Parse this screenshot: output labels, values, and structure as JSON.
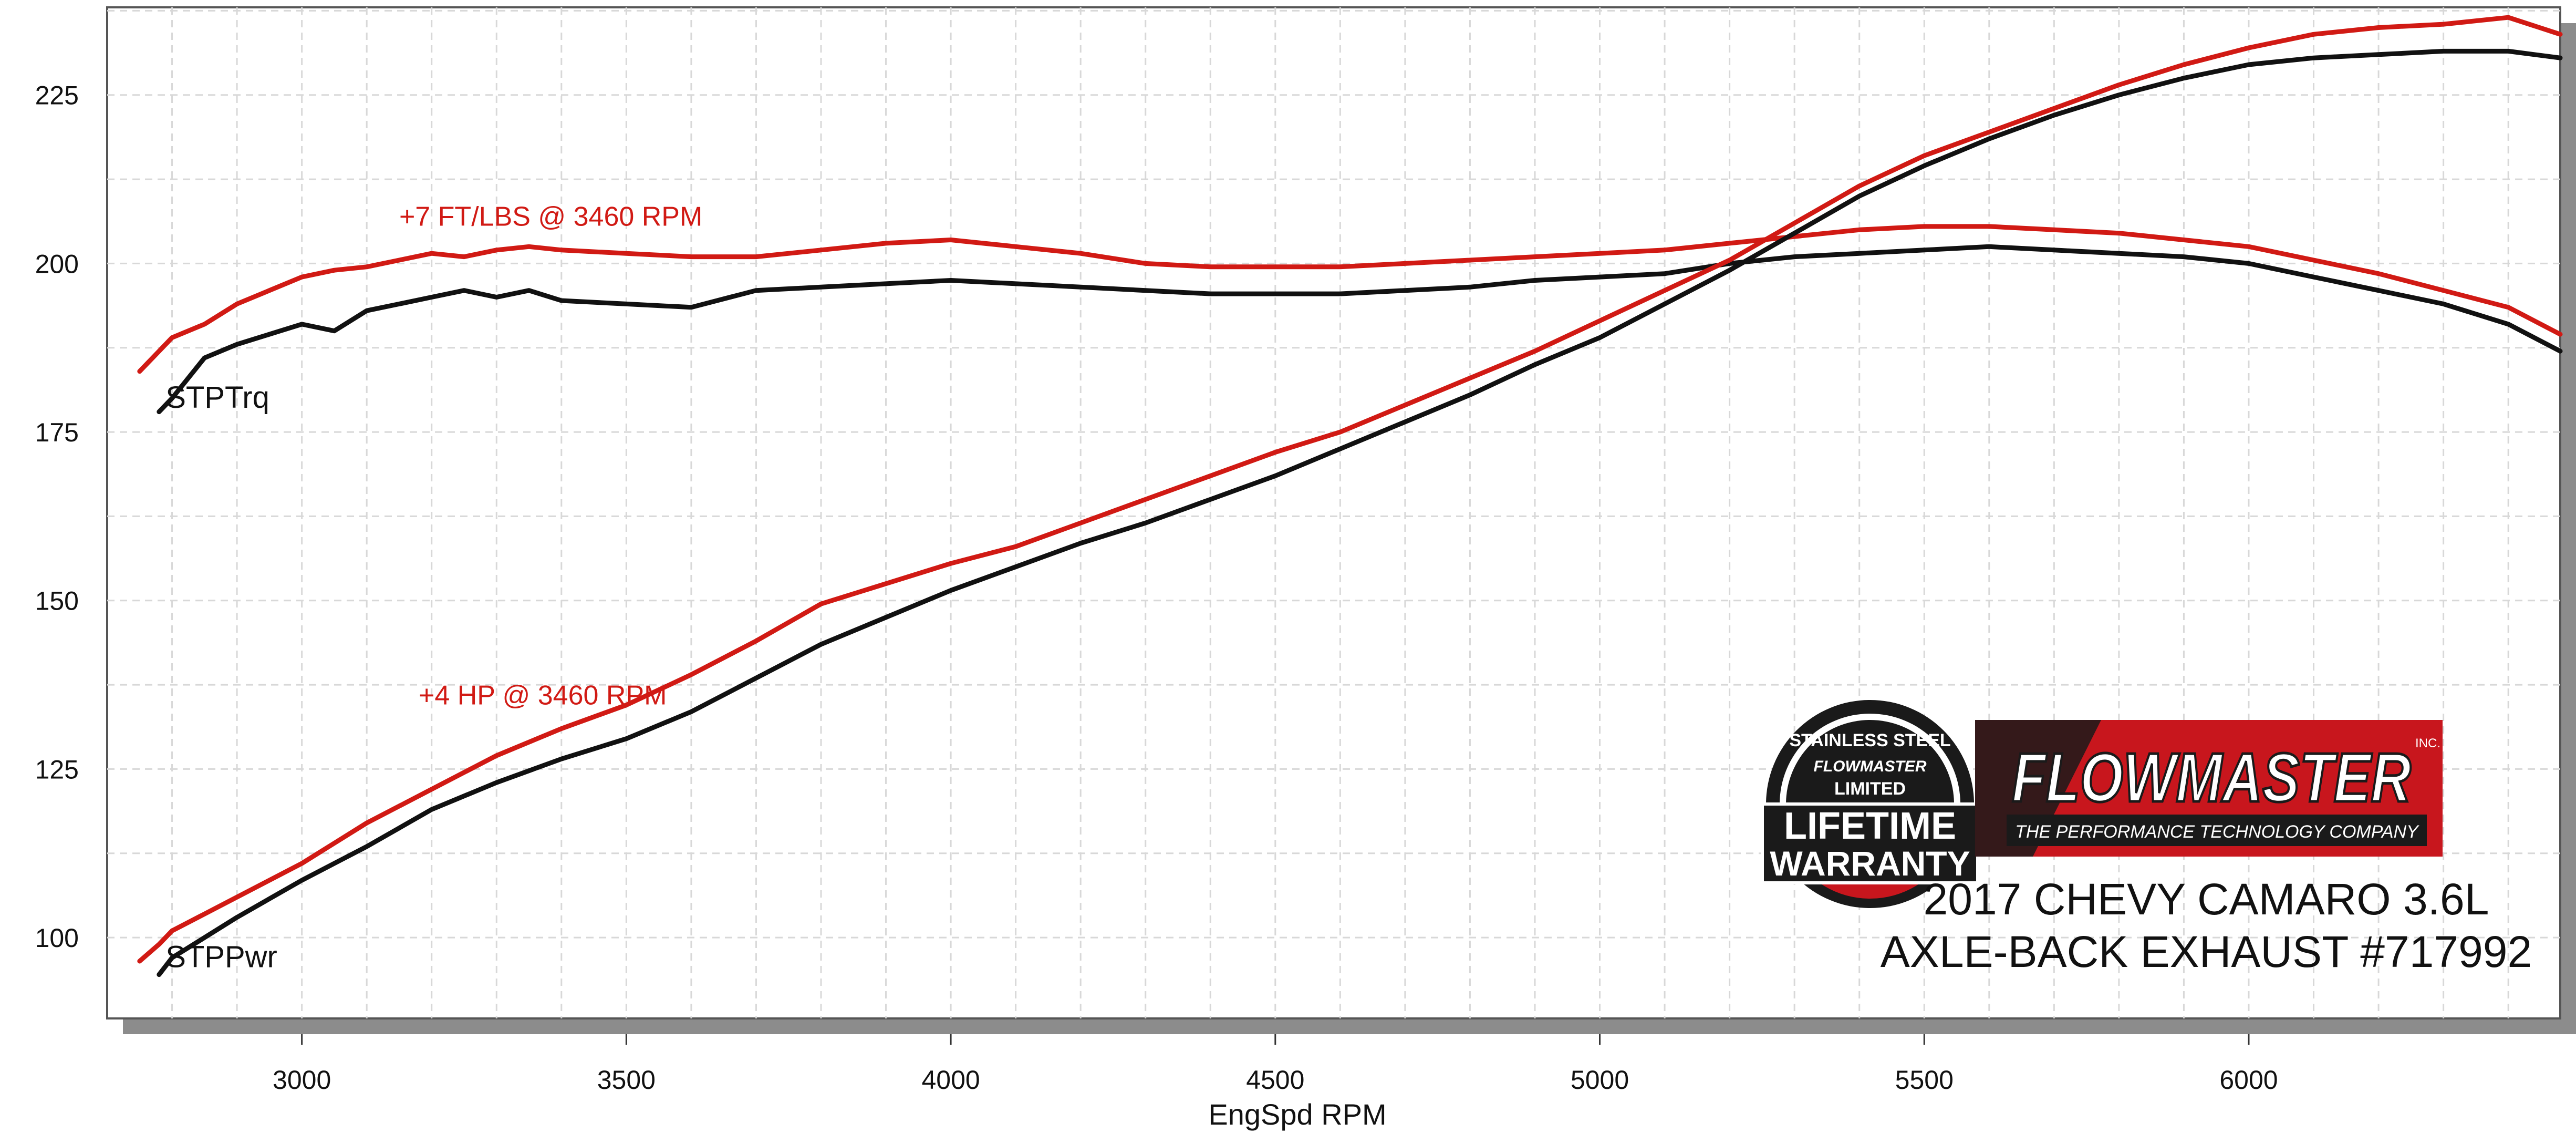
{
  "chart_data": {
    "type": "line",
    "xlabel": "EngSpd  RPM",
    "ylabel": "",
    "xlim": [
      2700,
      6480
    ],
    "ylim": [
      88,
      238
    ],
    "x_ticks": [
      3000,
      3500,
      4000,
      4500,
      5000,
      5500,
      6000
    ],
    "y_ticks": [
      100,
      125,
      150,
      175,
      200,
      225
    ],
    "grid": true,
    "series": [
      {
        "name": "STPTrq",
        "color": "#111111",
        "x": [
          2780,
          2800,
          2850,
          2900,
          3000,
          3050,
          3100,
          3150,
          3200,
          3250,
          3300,
          3350,
          3400,
          3500,
          3600,
          3700,
          3800,
          3900,
          4000,
          4100,
          4200,
          4300,
          4400,
          4500,
          4600,
          4700,
          4800,
          4900,
          5000,
          5100,
          5200,
          5300,
          5400,
          5500,
          5600,
          5700,
          5800,
          5900,
          6000,
          6100,
          6200,
          6300,
          6400,
          6480
        ],
        "y": [
          178,
          180,
          186,
          188,
          191,
          190,
          193,
          194,
          195,
          196,
          195,
          196,
          194.5,
          194,
          193.5,
          196,
          196.5,
          197,
          197.5,
          197,
          196.5,
          196,
          195.5,
          195.5,
          195.5,
          196,
          196.5,
          197.5,
          198,
          198.5,
          200,
          201,
          201.5,
          202,
          202.5,
          202,
          201.5,
          201,
          200,
          198,
          196,
          194,
          191,
          187
        ]
      },
      {
        "name": "",
        "color": "#d11a14",
        "x": [
          2750,
          2780,
          2800,
          2850,
          2900,
          2950,
          3000,
          3050,
          3100,
          3150,
          3200,
          3250,
          3300,
          3350,
          3400,
          3500,
          3600,
          3700,
          3800,
          3900,
          4000,
          4100,
          4200,
          4300,
          4400,
          4500,
          4600,
          4700,
          4800,
          4900,
          5000,
          5100,
          5200,
          5300,
          5400,
          5500,
          5600,
          5700,
          5800,
          5900,
          6000,
          6100,
          6200,
          6300,
          6400,
          6480
        ],
        "y": [
          184,
          187,
          189,
          191,
          194,
          196,
          198,
          199,
          199.5,
          200.5,
          201.5,
          201,
          202,
          202.5,
          202,
          201.5,
          201,
          201,
          202,
          203,
          203.5,
          202.5,
          201.5,
          200,
          199.5,
          199.5,
          199.5,
          200,
          200.5,
          201,
          201.5,
          202,
          203,
          204,
          205,
          205.5,
          205.5,
          205,
          204.5,
          203.5,
          202.5,
          200.5,
          198.5,
          196,
          193.5,
          189.5
        ]
      },
      {
        "name": "STPPwr",
        "color": "#111111",
        "x": [
          2780,
          2800,
          2900,
          3000,
          3100,
          3200,
          3300,
          3400,
          3500,
          3600,
          3700,
          3800,
          3900,
          4000,
          4100,
          4200,
          4300,
          4400,
          4500,
          4600,
          4700,
          4800,
          4900,
          5000,
          5100,
          5200,
          5300,
          5400,
          5500,
          5600,
          5700,
          5800,
          5900,
          6000,
          6100,
          6200,
          6300,
          6400,
          6480
        ],
        "y": [
          94.5,
          97,
          103,
          108.5,
          113.5,
          119,
          123,
          126.5,
          129.5,
          133.5,
          138.5,
          143.5,
          147.5,
          151.5,
          155,
          158.5,
          161.5,
          165,
          168.5,
          172.5,
          176.5,
          180.5,
          185,
          189,
          194,
          199,
          204.5,
          210,
          214.5,
          218.5,
          222,
          225,
          227.5,
          229.5,
          230.5,
          231,
          231.5,
          231.5,
          230.5
        ]
      },
      {
        "name": "",
        "color": "#d11a14",
        "x": [
          2750,
          2780,
          2800,
          2900,
          3000,
          3100,
          3200,
          3300,
          3400,
          3500,
          3600,
          3700,
          3800,
          3900,
          4000,
          4100,
          4200,
          4300,
          4400,
          4500,
          4600,
          4700,
          4800,
          4900,
          5000,
          5100,
          5200,
          5300,
          5400,
          5500,
          5600,
          5700,
          5800,
          5900,
          6000,
          6100,
          6200,
          6300,
          6400,
          6480
        ],
        "y": [
          96.5,
          99,
          101,
          106,
          111,
          117,
          122,
          127,
          131,
          134.5,
          139,
          144,
          149.5,
          152.5,
          155.5,
          158,
          161.5,
          165,
          168.5,
          172,
          175,
          179,
          183,
          187,
          191.5,
          196,
          200.5,
          206,
          211.5,
          216,
          219.5,
          223,
          226.5,
          229.5,
          232,
          234,
          235,
          235.5,
          236.5,
          234
        ]
      }
    ],
    "series_labels": [
      {
        "text": "STPTrq",
        "x": 2790,
        "y": 180
      },
      {
        "text": "STPPwr",
        "x": 2790,
        "y": 97
      }
    ],
    "annotations": [
      {
        "text": "+7 FT/LBS @ 3460 RPM",
        "x": 3150,
        "y": 207,
        "color": "#d11a14"
      },
      {
        "text": "+4 HP @ 3460 RPM",
        "x": 3180,
        "y": 136,
        "color": "#d11a14"
      }
    ]
  },
  "caption": {
    "line1": "2017 CHEVY CAMARO 3.6L",
    "line2": "AXLE-BACK EXHAUST #717992"
  },
  "brand_logo": {
    "wordmark": "FLOWMASTER",
    "inc": "INC.",
    "tagline": "THE PERFORMANCE TECHNOLOGY COMPANY",
    "color": "#c8161d"
  },
  "warranty_badge": {
    "top_text": "STAINLESS STEEL",
    "brand": "FLOWMASTER",
    "line1": "LIMITED",
    "line2": "LIFETIME",
    "line3": "WARRANTY"
  },
  "colors": {
    "before": "#111111",
    "after": "#d11a14",
    "grid": "#d8d8d8",
    "frame_shadow": "#8c8c8c"
  }
}
